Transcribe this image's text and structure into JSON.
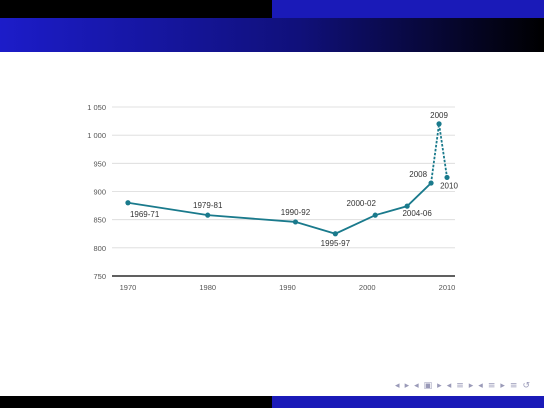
{
  "colors": {
    "header_dark": "#000000",
    "header_blue": "#1a1ab8",
    "series": "#1a7a8c",
    "grid": "#d9d9d9",
    "text": "#333333"
  },
  "nav_icons": [
    "triangle-left-icon",
    "triangle-right-icon",
    "frame-prev-icon",
    "frame-next-icon",
    "section-prev-icon",
    "section-next-icon",
    "subsection-icon",
    "search-icon"
  ],
  "chart_data": {
    "type": "line",
    "title": "",
    "xlabel": "",
    "ylabel": "",
    "xlim": [
      1968,
      2011
    ],
    "ylim": [
      750,
      1050
    ],
    "x_ticks": [
      "1970",
      "1980",
      "1990",
      "2000",
      "2010"
    ],
    "y_ticks": [
      "750",
      "800",
      "850",
      "900",
      "950",
      "1 000",
      "1 050"
    ],
    "grid": true,
    "series": [
      {
        "style": "solid",
        "points": [
          {
            "x": 1970,
            "y": 880,
            "label": "1969-71"
          },
          {
            "x": 1980,
            "y": 858,
            "label": "1979-81"
          },
          {
            "x": 1991,
            "y": 846,
            "label": "1990-92"
          },
          {
            "x": 1996,
            "y": 825,
            "label": "1995-97"
          },
          {
            "x": 2001,
            "y": 858,
            "label": "2000-02"
          },
          {
            "x": 2005,
            "y": 874,
            "label": "2004-06"
          },
          {
            "x": 2008,
            "y": 915,
            "label": "2008"
          }
        ]
      },
      {
        "style": "dashed",
        "points": [
          {
            "x": 2008,
            "y": 915,
            "label": ""
          },
          {
            "x": 2009,
            "y": 1020,
            "label": "2009"
          },
          {
            "x": 2010,
            "y": 925,
            "label": "2010"
          }
        ]
      }
    ]
  }
}
